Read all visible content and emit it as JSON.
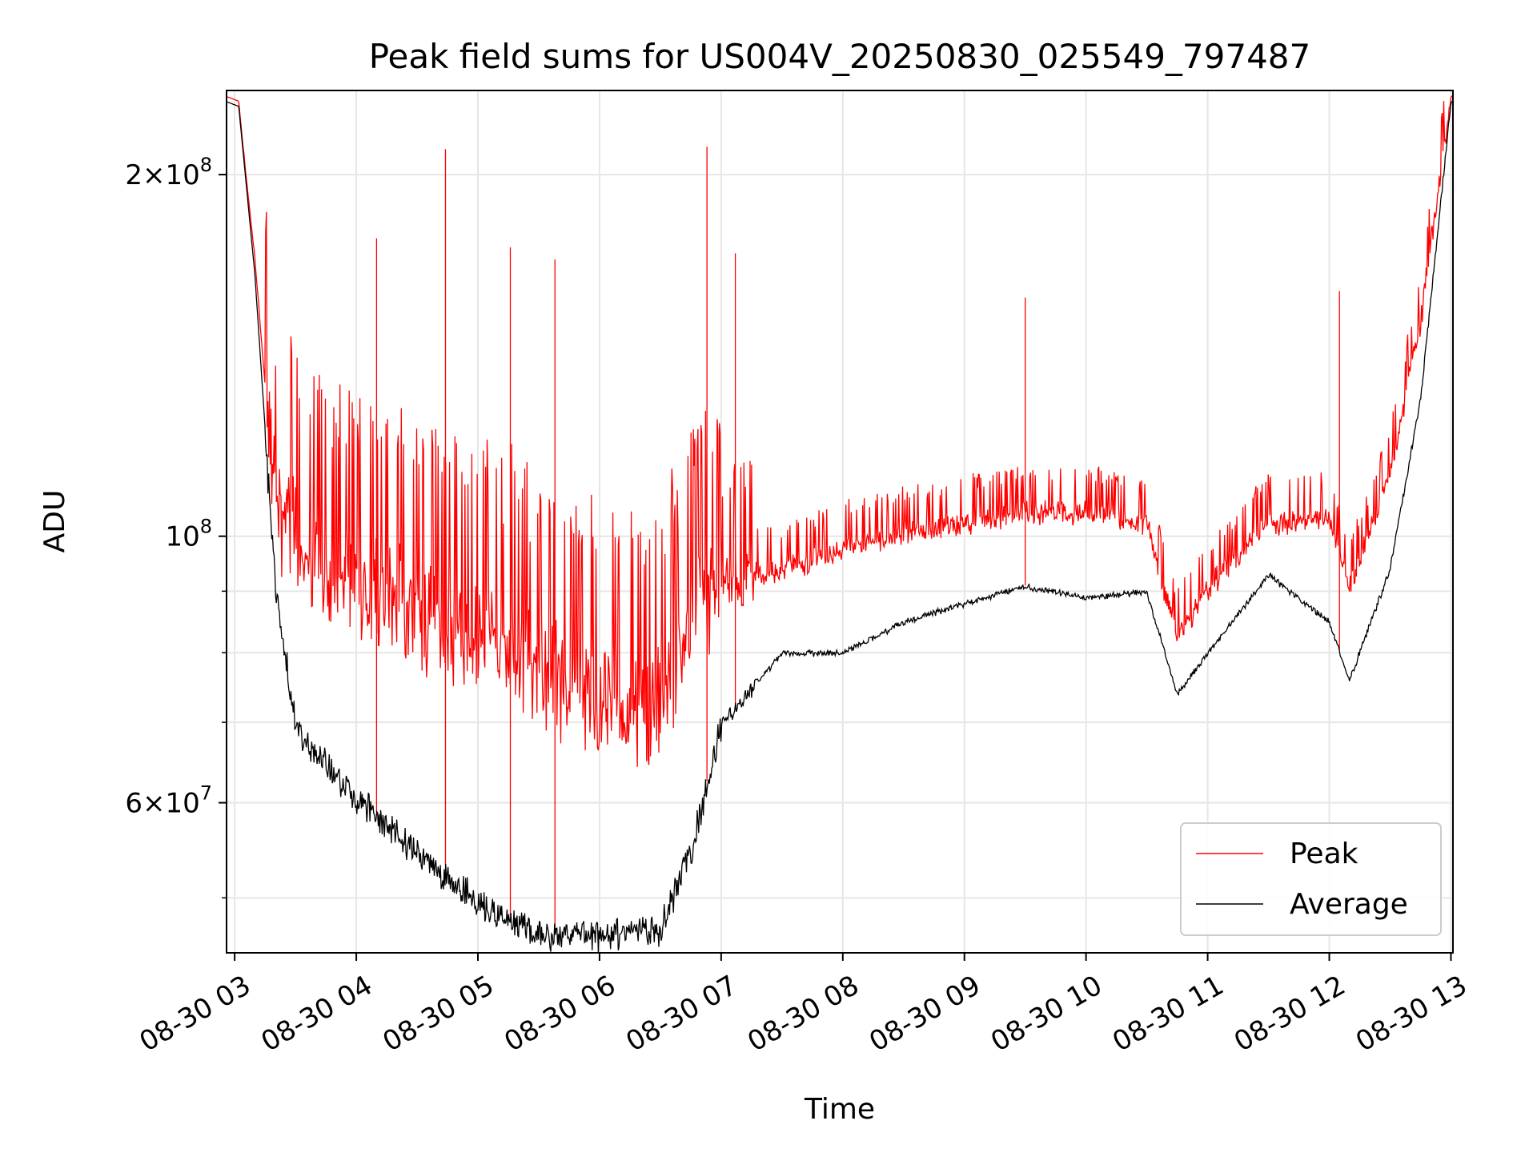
{
  "chart_data": {
    "type": "line",
    "title": "Peak field sums for US004V_20250830_025549_797487",
    "xlabel": "Time",
    "ylabel": "ADU",
    "yscale": "log",
    "ylim": [
      45000000,
      235000000
    ],
    "xlim": [
      "2025-08-30 02:56",
      "2025-08-30 13:01"
    ],
    "grid": true,
    "legend_position": "lower right",
    "x_ticks": [
      "08-30 03",
      "08-30 04",
      "08-30 05",
      "08-30 06",
      "08-30 07",
      "08-30 08",
      "08-30 09",
      "08-30 10",
      "08-30 11",
      "08-30 12",
      "08-30 13"
    ],
    "y_major_ticks": [
      {
        "value": 60000000,
        "mantissa": "6",
        "label": "6 × 10^7"
      },
      {
        "value": 100000000,
        "mantissa": "",
        "label": "10^8"
      },
      {
        "value": 200000000,
        "mantissa": "2",
        "label": "2 × 10^8"
      }
    ],
    "y_minor_ticks": [
      50000000,
      70000000,
      80000000,
      90000000,
      300000000
    ],
    "series": [
      {
        "name": "Peak",
        "color": "#ff0000",
        "x": [
          "2025-08-30 02:56",
          "2025-08-30 03:02",
          "2025-08-30 03:10",
          "2025-08-30 03:20",
          "2025-08-30 03:30",
          "2025-08-30 03:45",
          "2025-08-30 04:00",
          "2025-08-30 04:30",
          "2025-08-30 05:00",
          "2025-08-30 05:30",
          "2025-08-30 06:00",
          "2025-08-30 06:30",
          "2025-08-30 06:45",
          "2025-08-30 07:00",
          "2025-08-30 07:30",
          "2025-08-30 08:00",
          "2025-08-30 08:30",
          "2025-08-30 09:00",
          "2025-08-30 09:30",
          "2025-08-30 10:00",
          "2025-08-30 10:30",
          "2025-08-30 10:45",
          "2025-08-30 11:00",
          "2025-08-30 11:30",
          "2025-08-30 12:00",
          "2025-08-30 12:10",
          "2025-08-30 12:30",
          "2025-08-30 12:45",
          "2025-08-30 13:00"
        ],
        "y": [
          230000000,
          228000000,
          170000000,
          105000000,
          98000000,
          90000000,
          88000000,
          85000000,
          80000000,
          76000000,
          72000000,
          70000000,
          82000000,
          90000000,
          93000000,
          97000000,
          100000000,
          102000000,
          104000000,
          104000000,
          102000000,
          82000000,
          90000000,
          102000000,
          103000000,
          90000000,
          112000000,
          150000000,
          230000000
        ],
        "spikes": [
          {
            "x": "2025-08-30 04:44",
            "y": 210000000
          },
          {
            "x": "2025-08-30 06:53",
            "y": 211000000
          },
          {
            "x": "2025-08-30 07:07",
            "y": 172000000
          },
          {
            "x": "2025-08-30 04:10",
            "y": 177000000
          },
          {
            "x": "2025-08-30 05:16",
            "y": 174000000
          },
          {
            "x": "2025-08-30 05:38",
            "y": 170000000
          },
          {
            "x": "2025-08-30 09:30",
            "y": 158000000
          },
          {
            "x": "2025-08-30 12:05",
            "y": 160000000
          }
        ]
      },
      {
        "name": "Average",
        "color": "#000000",
        "x": [
          "2025-08-30 02:56",
          "2025-08-30 03:02",
          "2025-08-30 03:10",
          "2025-08-30 03:20",
          "2025-08-30 03:30",
          "2025-08-30 04:00",
          "2025-08-30 04:30",
          "2025-08-30 05:00",
          "2025-08-30 05:30",
          "2025-08-30 06:00",
          "2025-08-30 06:30",
          "2025-08-30 06:45",
          "2025-08-30 07:00",
          "2025-08-30 07:30",
          "2025-08-30 08:00",
          "2025-08-30 08:30",
          "2025-08-30 09:00",
          "2025-08-30 09:30",
          "2025-08-30 10:00",
          "2025-08-30 10:30",
          "2025-08-30 10:45",
          "2025-08-30 11:00",
          "2025-08-30 11:30",
          "2025-08-30 12:00",
          "2025-08-30 12:10",
          "2025-08-30 12:30",
          "2025-08-30 12:45",
          "2025-08-30 13:00"
        ],
        "y": [
          230000000,
          228000000,
          165000000,
          92000000,
          70000000,
          61000000,
          55000000,
          50000000,
          47000000,
          47000000,
          47500000,
          55000000,
          70000000,
          80000000,
          80000000,
          85000000,
          88000000,
          91000000,
          89000000,
          90000000,
          74000000,
          80000000,
          93000000,
          85000000,
          76000000,
          94000000,
          130000000,
          230000000
        ]
      }
    ]
  }
}
